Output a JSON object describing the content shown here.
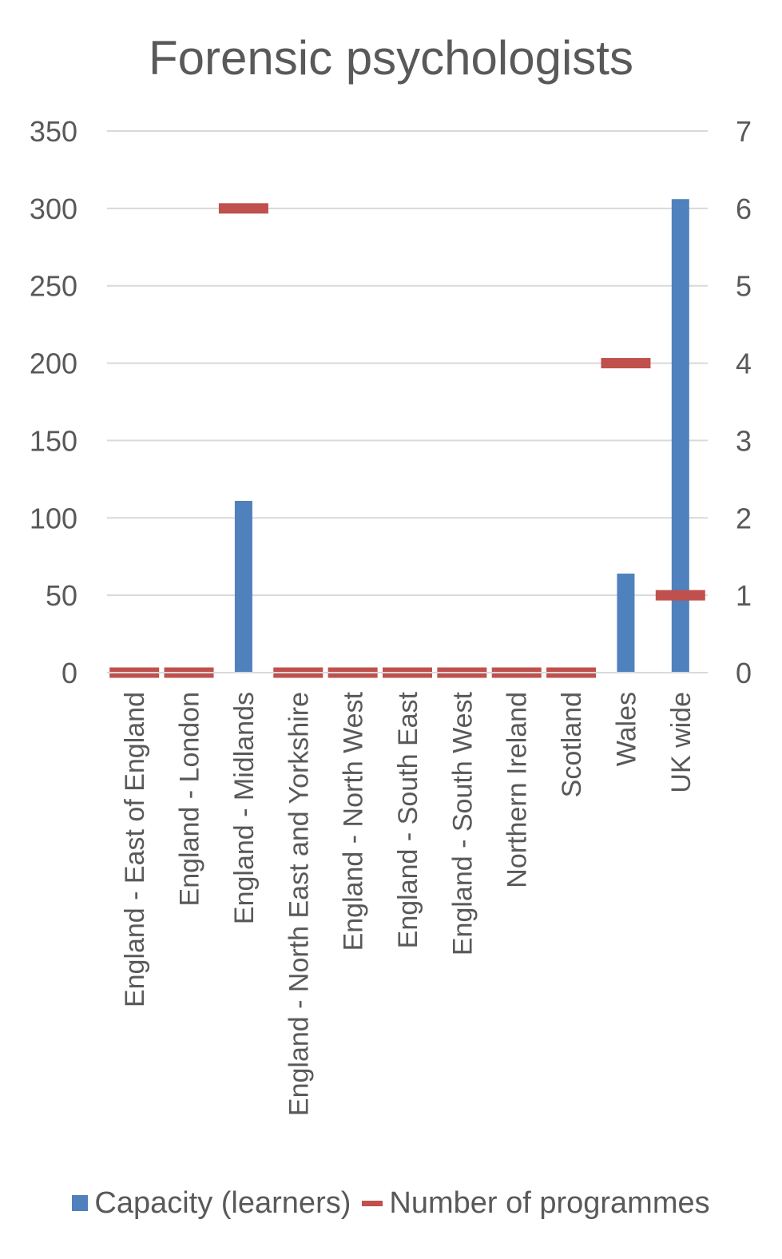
{
  "chart_data": {
    "type": "bar",
    "title": "Forensic psychologists",
    "categories": [
      "England - East of England",
      "England - London",
      "England - Midlands",
      "England - North East and Yorkshire",
      "England - North West",
      "England - South East",
      "England - South West",
      "Northern Ireland",
      "Scotland",
      "Wales",
      "UK wide"
    ],
    "series": [
      {
        "name": "Capacity (learners)",
        "type": "bar",
        "axis": "left",
        "color": "#4f81bd",
        "values": [
          0,
          0,
          111,
          0,
          0,
          0,
          0,
          0,
          0,
          64,
          306
        ]
      },
      {
        "name": "Number of programmes",
        "type": "marker",
        "axis": "right",
        "color": "#c0504d",
        "values": [
          0,
          0,
          6,
          0,
          0,
          0,
          0,
          0,
          0,
          4,
          1
        ]
      }
    ],
    "y_left": {
      "min": 0,
      "max": 350,
      "step": 50,
      "ticks": [
        "0",
        "50",
        "100",
        "150",
        "200",
        "250",
        "300",
        "350"
      ]
    },
    "y_right": {
      "min": 0,
      "max": 7,
      "step": 1,
      "ticks": [
        "0",
        "1",
        "2",
        "3",
        "4",
        "5",
        "6",
        "7"
      ]
    },
    "grid": true,
    "legend_position": "bottom"
  }
}
